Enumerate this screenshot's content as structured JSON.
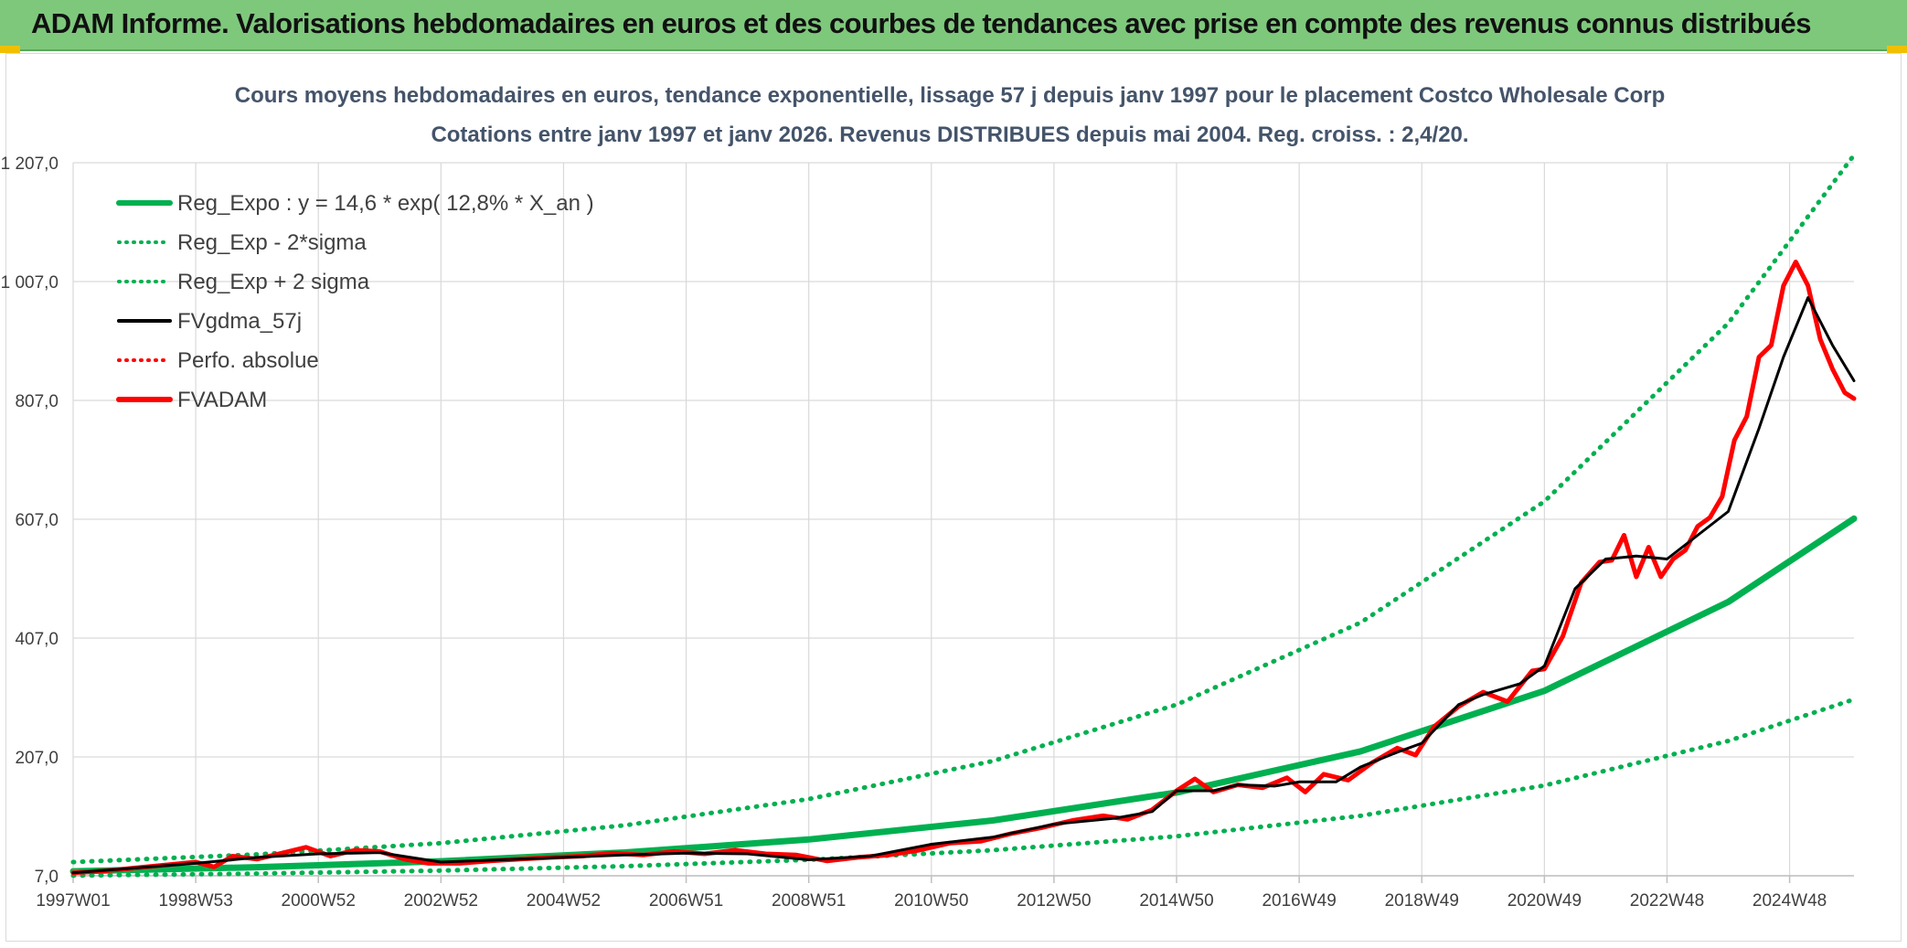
{
  "header": {
    "title": "ADAM Informe. Valorisations hebdomadaires en euros et des courbes de tendances avec prise en compte des revenus connus distribués"
  },
  "colors": {
    "banner": "#7ec87c",
    "trend": "#00b050",
    "smooth": "#000000",
    "price": "#ff0000",
    "grid": "#d9d9d9"
  },
  "chart_data": {
    "type": "line",
    "title": "Cours moyens hebdomadaires en euros, tendance exponentielle, lissage 57 j depuis janv 1997 pour le placement Costco Wholesale Corp",
    "subtitle": "Cotations entre janv 1997 et janv 2026. Revenus DISTRIBUES depuis mai 2004. Reg. croiss. : 2,4/20.",
    "xlabel": "",
    "ylabel": "",
    "xlim": [
      1997.0,
      2026.05
    ],
    "ylim": [
      7,
      1207
    ],
    "y_ticks": [
      "7,0",
      "207,0",
      "407,0",
      "607,0",
      "807,0",
      "1 007,0",
      "1 207,0"
    ],
    "y_tick_values": [
      7,
      207,
      407,
      607,
      807,
      1007,
      1207
    ],
    "x_ticks": [
      "1997W01",
      "1998W53",
      "2000W52",
      "2002W52",
      "2004W52",
      "2006W51",
      "2008W51",
      "2010W50",
      "2012W50",
      "2014W50",
      "2016W49",
      "2018W49",
      "2020W49",
      "2022W48",
      "2024W48"
    ],
    "x_tick_values": [
      1997.0,
      1999.0,
      2001.0,
      2003.0,
      2005.0,
      2007.0,
      2009.0,
      2011.0,
      2013.0,
      2015.0,
      2017.0,
      2019.0,
      2021.0,
      2023.0,
      2025.0
    ],
    "legend": [
      {
        "label": "Reg_Expo : y = 14,6 * exp( 12,8% *  X_an )",
        "style": "solid-thick",
        "color": "#00b050"
      },
      {
        "label": "Reg_Exp - 2*sigma",
        "style": "dotted",
        "color": "#00b050"
      },
      {
        "label": "Reg_Exp + 2 sigma",
        "style": "dotted",
        "color": "#00b050"
      },
      {
        "label": "FVgdma_57j",
        "style": "solid",
        "color": "#000000"
      },
      {
        "label": "Perfo. absolue",
        "style": "dotted",
        "color": "#ff0000"
      },
      {
        "label": "FVADAM",
        "style": "solid-thick",
        "color": "#ff0000"
      }
    ],
    "legend_position": "top-left",
    "series": [
      {
        "name": "Reg_Expo",
        "x": [
          1997.0,
          2000.0,
          2003.0,
          2006.0,
          2009.0,
          2012.0,
          2015.0,
          2018.0,
          2021.0,
          2024.0,
          2026.05
        ],
        "values": [
          14.6,
          21.4,
          31.5,
          46.3,
          68.1,
          100.1,
          147.2,
          216.4,
          318.3,
          468.0,
          608.0
        ]
      },
      {
        "name": "Reg_Exp + 2 sigma",
        "x": [
          1997.0,
          2000.0,
          2003.0,
          2006.0,
          2009.0,
          2012.0,
          2015.0,
          2018.0,
          2021.0,
          2024.0,
          2026.05
        ],
        "values": [
          30.0,
          43.0,
          62.0,
          92.0,
          136.0,
          200.0,
          295.0,
          433.0,
          637.0,
          937.0,
          1220.0
        ]
      },
      {
        "name": "Reg_Exp - 2*sigma",
        "x": [
          1997.0,
          2000.0,
          2003.0,
          2006.0,
          2009.0,
          2012.0,
          2015.0,
          2018.0,
          2021.0,
          2024.0,
          2026.05
        ],
        "values": [
          7.3,
          10.7,
          15.7,
          23.1,
          34.0,
          50.0,
          73.5,
          108.0,
          159.0,
          234.0,
          304.0
        ]
      },
      {
        "name": "FVADAM",
        "x": [
          1997.0,
          1997.5,
          1998.0,
          1998.5,
          1999.0,
          1999.3,
          1999.6,
          2000.0,
          2000.4,
          2000.8,
          2001.2,
          2001.6,
          2002.0,
          2002.4,
          2002.8,
          2003.3,
          2003.8,
          2004.3,
          2004.8,
          2005.3,
          2005.8,
          2006.3,
          2006.8,
          2007.3,
          2007.8,
          2008.3,
          2008.8,
          2009.3,
          2009.8,
          2010.3,
          2010.8,
          2011.3,
          2011.8,
          2012.3,
          2012.8,
          2013.3,
          2013.8,
          2014.2,
          2014.6,
          2015.0,
          2015.3,
          2015.6,
          2016.0,
          2016.4,
          2016.8,
          2017.1,
          2017.4,
          2017.8,
          2018.2,
          2018.6,
          2018.9,
          2019.2,
          2019.6,
          2020.0,
          2020.4,
          2020.8,
          2021.0,
          2021.3,
          2021.6,
          2021.9,
          2022.1,
          2022.3,
          2022.5,
          2022.7,
          2022.9,
          2023.1,
          2023.3,
          2023.5,
          2023.7,
          2023.9,
          2024.1,
          2024.3,
          2024.5,
          2024.7,
          2024.9,
          2025.1,
          2025.3,
          2025.5,
          2025.7,
          2025.9,
          2026.05
        ],
        "values": [
          12,
          15,
          20,
          25,
          30,
          22,
          40,
          35,
          45,
          55,
          40,
          50,
          48,
          35,
          28,
          28,
          32,
          35,
          38,
          40,
          45,
          42,
          48,
          44,
          50,
          44,
          42,
          32,
          38,
          42,
          50,
          62,
          65,
          78,
          88,
          100,
          108,
          102,
          118,
          150,
          170,
          148,
          160,
          155,
          172,
          148,
          178,
          168,
          198,
          222,
          210,
          258,
          292,
          316,
          300,
          352,
          355,
          410,
          500,
          535,
          538,
          580,
          510,
          560,
          510,
          540,
          555,
          595,
          610,
          645,
          740,
          780,
          880,
          900,
          1000,
          1040,
          1000,
          910,
          860,
          820,
          810
        ]
      },
      {
        "name": "FVgdma_57j",
        "x": [
          1997.0,
          1998.0,
          1999.0,
          2000.0,
          2001.0,
          2002.0,
          2003.0,
          2004.0,
          2005.0,
          2006.0,
          2007.0,
          2008.0,
          2009.0,
          2010.0,
          2011.0,
          2012.0,
          2013.0,
          2014.0,
          2014.6,
          2015.0,
          2015.6,
          2016.0,
          2016.6,
          2017.0,
          2017.6,
          2018.0,
          2018.6,
          2019.0,
          2019.6,
          2020.0,
          2020.6,
          2021.0,
          2021.5,
          2022.0,
          2022.5,
          2023.0,
          2023.5,
          2024.0,
          2024.5,
          2024.9,
          2025.3,
          2025.7,
          2026.05
        ],
        "values": [
          12,
          20,
          28,
          38,
          44,
          46,
          30,
          34,
          38,
          42,
          45,
          44,
          34,
          40,
          60,
          72,
          94,
          104,
          115,
          150,
          150,
          160,
          158,
          165,
          165,
          190,
          215,
          230,
          295,
          312,
          330,
          360,
          490,
          540,
          545,
          540,
          580,
          620,
          760,
          880,
          980,
          900,
          840
        ]
      }
    ]
  }
}
